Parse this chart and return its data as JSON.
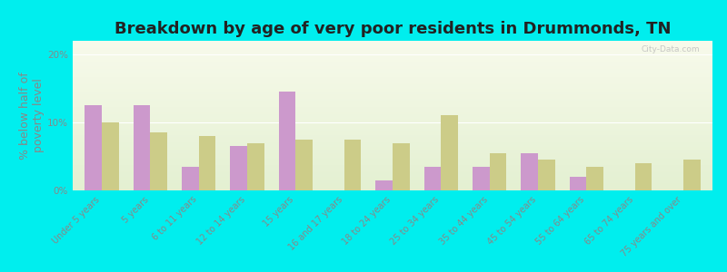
{
  "title": "Breakdown by age of very poor residents in Drummonds, TN",
  "ylabel": "% below half of\npoverty level",
  "categories": [
    "Under 5 years",
    "5 years",
    "6 to 11 years",
    "12 to 14 years",
    "15 years",
    "16 and 17 years",
    "18 to 24 years",
    "25 to 34 years",
    "35 to 44 years",
    "45 to 54 years",
    "55 to 64 years",
    "65 to 74 years",
    "75 years and over"
  ],
  "drummonds": [
    12.5,
    12.5,
    3.5,
    6.5,
    14.5,
    0.0,
    1.5,
    3.5,
    3.5,
    5.5,
    2.0,
    0.0,
    0.0
  ],
  "tennessee": [
    10.0,
    8.5,
    8.0,
    7.0,
    7.5,
    7.5,
    7.0,
    11.0,
    5.5,
    4.5,
    3.5,
    4.0,
    4.5
  ],
  "drummonds_color": "#cc99cc",
  "tennessee_color": "#cccc88",
  "background_outer": "#00eeee",
  "ylim": [
    0,
    22
  ],
  "yticks": [
    0,
    10,
    20
  ],
  "ytick_labels": [
    "0%",
    "10%",
    "20%"
  ],
  "bar_width": 0.35,
  "title_fontsize": 13,
  "axis_label_fontsize": 9,
  "tick_fontsize": 7.5,
  "legend_fontsize": 9,
  "text_color": "#888888",
  "title_color": "#222222"
}
